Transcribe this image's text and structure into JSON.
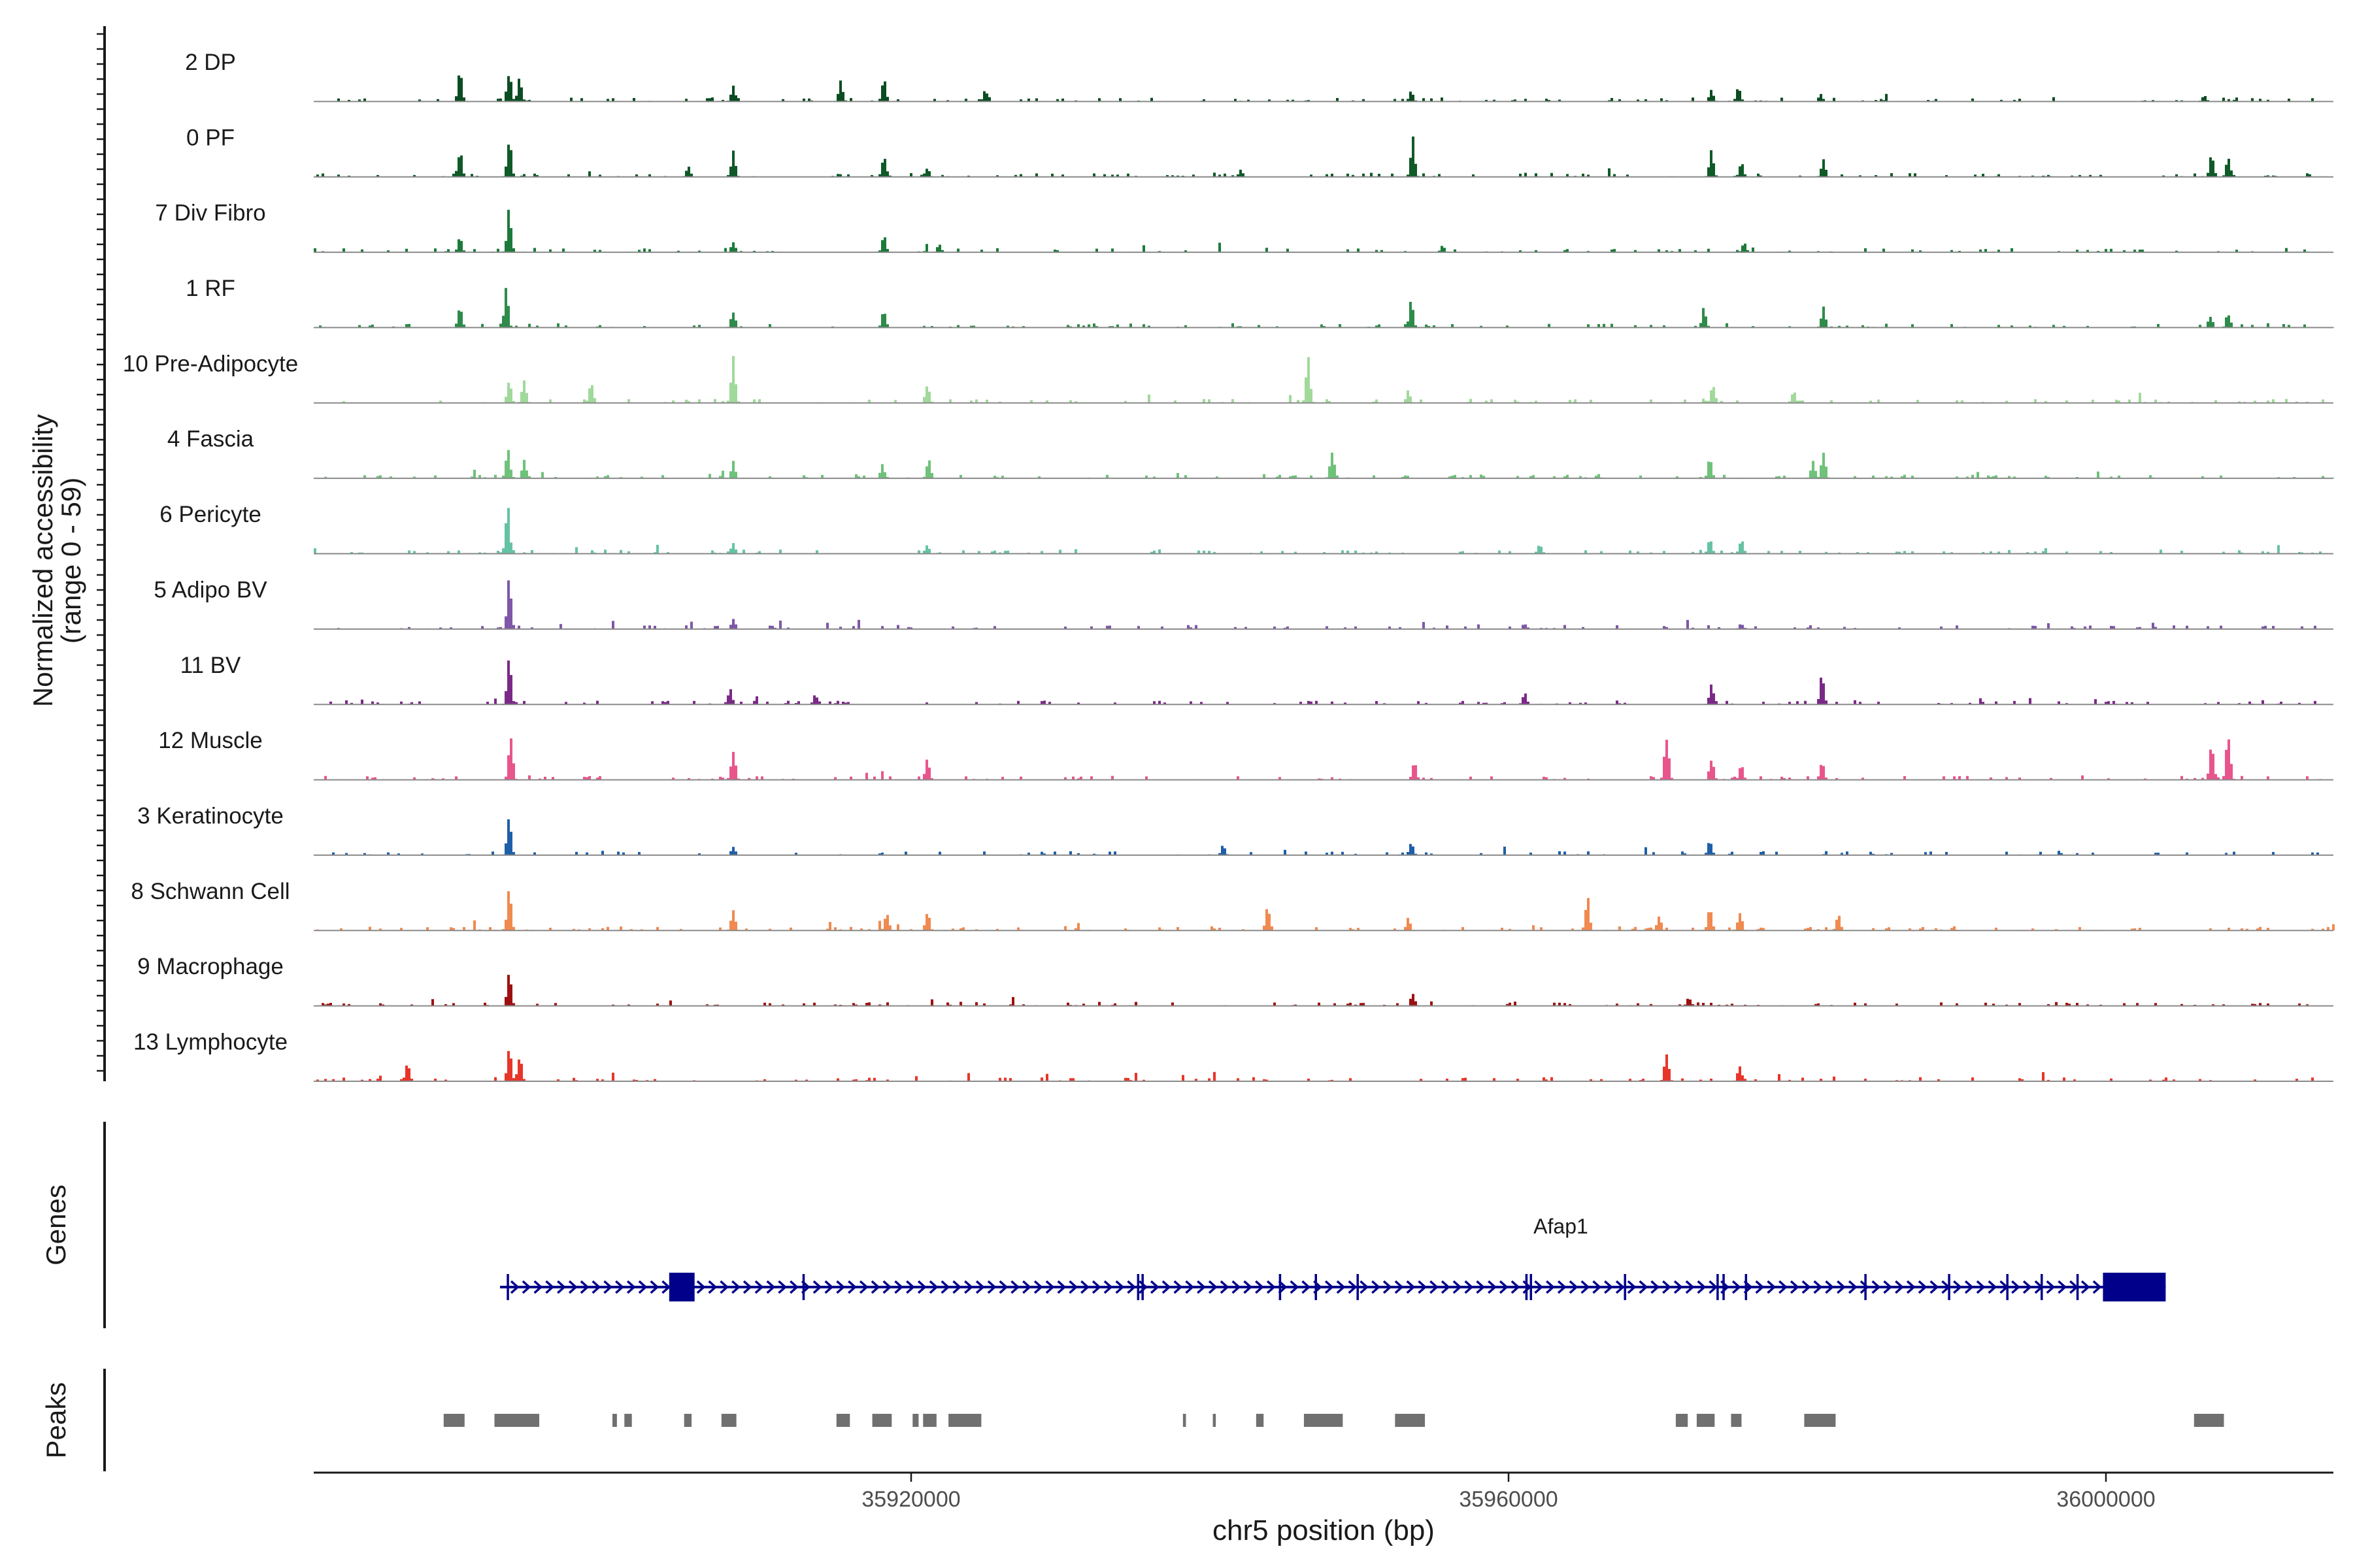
{
  "chart_data": {
    "type": "area",
    "title": "",
    "ylabel_line1": "Normalized accessibility",
    "ylabel_line2": "(range 0 - 59)",
    "y_range": [
      0,
      59
    ],
    "xlabel": "chr5 position (bp)",
    "x_range": [
      35880000,
      36015000
    ],
    "x_ticks": [
      35920000,
      35960000,
      36000000
    ],
    "x_tick_labels": [
      "35920000",
      "35960000",
      "36000000"
    ],
    "genes_label": "Genes",
    "peaks_label": "Peaks",
    "tracks": [
      {
        "name": "2 DP",
        "color": "#0b4d22",
        "peaks": [
          [
            35889700,
            0.48
          ],
          [
            35893000,
            0.55
          ],
          [
            35893700,
            0.4
          ],
          [
            35908000,
            0.25
          ],
          [
            35915200,
            0.34
          ],
          [
            35918100,
            0.37
          ],
          [
            35924900,
            0.2
          ],
          [
            35953400,
            0.2
          ],
          [
            35973500,
            0.2
          ],
          [
            35975300,
            0.24
          ],
          [
            35980800,
            0.13
          ],
          [
            36006500,
            0.12
          ]
        ]
      },
      {
        "name": "0 PF",
        "color": "#0f5a28",
        "peaks": [
          [
            35889700,
            0.45
          ],
          [
            35893000,
            0.65
          ],
          [
            35905000,
            0.2
          ],
          [
            35908000,
            0.42
          ],
          [
            35918100,
            0.38
          ],
          [
            35921000,
            0.17
          ],
          [
            35942000,
            0.12
          ],
          [
            35953500,
            0.65
          ],
          [
            35973500,
            0.5
          ],
          [
            35975500,
            0.24
          ],
          [
            35981000,
            0.31
          ],
          [
            36007000,
            0.37
          ],
          [
            36008100,
            0.33
          ]
        ]
      },
      {
        "name": "7 Div Fibro",
        "color": "#1c7a3a",
        "peaks": [
          [
            35889700,
            0.25
          ],
          [
            35893000,
            0.75
          ],
          [
            35908000,
            0.18
          ],
          [
            35918100,
            0.28
          ],
          [
            35921800,
            0.13
          ],
          [
            35955500,
            0.12
          ],
          [
            35975700,
            0.16
          ]
        ]
      },
      {
        "name": "1 RF",
        "color": "#2e8b4a",
        "peaks": [
          [
            35889700,
            0.35
          ],
          [
            35892800,
            0.63
          ],
          [
            35908000,
            0.29
          ],
          [
            35918100,
            0.29
          ],
          [
            35953400,
            0.46
          ],
          [
            35973000,
            0.32
          ],
          [
            35981000,
            0.34
          ],
          [
            36006900,
            0.22
          ],
          [
            36008100,
            0.26
          ]
        ]
      },
      {
        "name": "10 Pre-Adipocyte",
        "color": "#a1d99b",
        "peaks": [
          [
            35893000,
            0.4
          ],
          [
            35894000,
            0.38
          ],
          [
            35898500,
            0.35
          ],
          [
            35908000,
            0.8
          ],
          [
            35921000,
            0.32
          ],
          [
            35946500,
            0.77
          ],
          [
            35953200,
            0.2
          ],
          [
            35973600,
            0.33
          ],
          [
            35979000,
            0.2
          ]
        ]
      },
      {
        "name": "4 Fascia",
        "color": "#6fc27a",
        "peaks": [
          [
            35892900,
            0.53
          ],
          [
            35894000,
            0.3
          ],
          [
            35908000,
            0.28
          ],
          [
            35918000,
            0.22
          ],
          [
            35921100,
            0.33
          ],
          [
            35948100,
            0.46
          ],
          [
            35973400,
            0.34
          ],
          [
            35980300,
            0.28
          ],
          [
            35981000,
            0.45
          ]
        ]
      },
      {
        "name": "6 Pericyte",
        "color": "#66c2a5",
        "peaks": [
          [
            35892900,
            0.82
          ],
          [
            35908000,
            0.19
          ],
          [
            35921000,
            0.16
          ],
          [
            35962000,
            0.18
          ],
          [
            35973400,
            0.27
          ],
          [
            35975500,
            0.24
          ]
        ]
      },
      {
        "name": "5 Adipo BV",
        "color": "#7e57a8",
        "peaks": [
          [
            35893000,
            0.8
          ],
          [
            35908000,
            0.18
          ],
          [
            35961000,
            0.1
          ],
          [
            35975500,
            0.1
          ]
        ]
      },
      {
        "name": "11 BV",
        "color": "#7a2a86",
        "peaks": [
          [
            35893000,
            0.73
          ],
          [
            35907800,
            0.28
          ],
          [
            35913500,
            0.16
          ],
          [
            35961000,
            0.2
          ],
          [
            35973500,
            0.35
          ],
          [
            35980900,
            0.48
          ]
        ]
      },
      {
        "name": "12 Muscle",
        "color": "#e8558c",
        "peaks": [
          [
            35893100,
            0.75
          ],
          [
            35908000,
            0.55
          ],
          [
            35921000,
            0.38
          ],
          [
            35953600,
            0.3
          ],
          [
            35970500,
            0.8
          ],
          [
            35973500,
            0.38
          ],
          [
            35975500,
            0.23
          ],
          [
            35980900,
            0.3
          ],
          [
            36007000,
            0.6
          ],
          [
            36008100,
            0.85
          ]
        ]
      },
      {
        "name": "3 Keratinocyte",
        "color": "#1f5fa8",
        "peaks": [
          [
            35893000,
            0.7
          ],
          [
            35908000,
            0.15
          ],
          [
            35940800,
            0.17
          ],
          [
            35953400,
            0.22
          ],
          [
            35973400,
            0.26
          ]
        ]
      },
      {
        "name": "8 Schwann Cell",
        "color": "#f08a50",
        "peaks": [
          [
            35893000,
            0.78
          ],
          [
            35908000,
            0.38
          ],
          [
            35918300,
            0.32
          ],
          [
            35921000,
            0.33
          ],
          [
            35943800,
            0.42
          ],
          [
            35953200,
            0.2
          ],
          [
            35965200,
            0.55
          ],
          [
            35970000,
            0.24
          ],
          [
            35973400,
            0.4
          ],
          [
            35975400,
            0.34
          ],
          [
            35982000,
            0.27
          ]
        ]
      },
      {
        "name": "9 Macrophage",
        "color": "#9e1010",
        "peaks": [
          [
            35893000,
            0.58
          ],
          [
            35953500,
            0.2
          ],
          [
            35972000,
            0.15
          ]
        ]
      },
      {
        "name": "13 Lymphocyte",
        "color": "#e8352a",
        "peaks": [
          [
            35886200,
            0.3
          ],
          [
            35893000,
            0.58
          ],
          [
            35893700,
            0.42
          ],
          [
            35970500,
            0.5
          ],
          [
            35975400,
            0.27
          ]
        ]
      }
    ],
    "gene": {
      "name": "Afap1",
      "start": 35893000,
      "end": 36004000,
      "color": "#00008b",
      "exons": [
        [
          35903800,
          35905500
        ],
        [
          35999800,
          36004000
        ]
      ],
      "junctions": [
        35893000,
        35912800,
        35935200,
        35935500,
        35944700,
        35947100,
        35949900,
        35961200,
        35961500,
        35967800,
        35974000,
        35974400,
        35975900,
        35983900,
        35989500,
        35993400,
        35995700,
        35998100
      ]
    },
    "peaks": [
      [
        35888700,
        35890100
      ],
      [
        35892100,
        35895100
      ],
      [
        35900000,
        35900300
      ],
      [
        35900800,
        35901300
      ],
      [
        35904800,
        35905300
      ],
      [
        35907300,
        35908300
      ],
      [
        35915000,
        35915900
      ],
      [
        35917400,
        35918700
      ],
      [
        35920100,
        35920500
      ],
      [
        35920800,
        35921700
      ],
      [
        35922500,
        35924700
      ],
      [
        35938200,
        35938400
      ],
      [
        35940200,
        35940400
      ],
      [
        35943100,
        35943600
      ],
      [
        35946300,
        35948900
      ],
      [
        35952400,
        35954400
      ],
      [
        35971200,
        35972000
      ],
      [
        35972600,
        35973800
      ],
      [
        35974900,
        35975600
      ],
      [
        35979800,
        35981900
      ],
      [
        36005900,
        36007900
      ]
    ]
  }
}
